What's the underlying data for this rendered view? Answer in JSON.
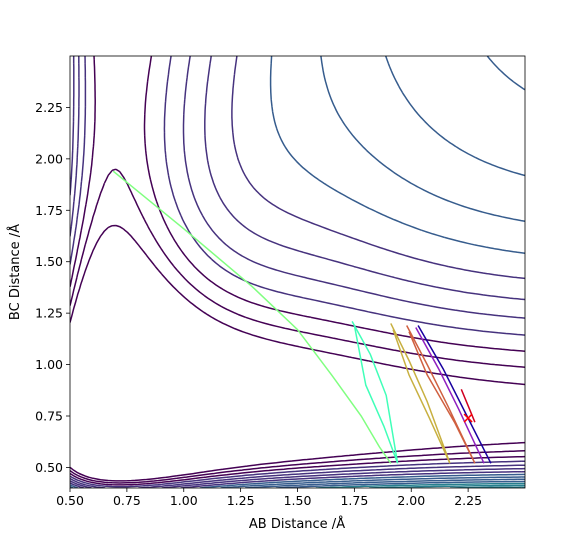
{
  "chart_data": {
    "type": "contour",
    "xlabel": "AB Distance /Å",
    "ylabel": "BC Distance /Å",
    "xlim": [
      0.5,
      2.5
    ],
    "ylim": [
      0.4,
      2.5
    ],
    "xticks": [
      "0.50",
      "0.75",
      "1.00",
      "1.25",
      "1.50",
      "1.75",
      "2.00",
      "2.25"
    ],
    "yticks": [
      "0.50",
      "0.75",
      "1.00",
      "1.25",
      "1.50",
      "1.75",
      "2.00",
      "2.25"
    ],
    "grid": false,
    "colormap": "viridis",
    "contour_colors": [
      "#440154",
      "#46327e",
      "#365c8d",
      "#277f8e",
      "#1fa187",
      "#4ac16d",
      "#a0da39",
      "#fde725"
    ],
    "trajectories": [
      {
        "color": "#80ff80",
        "points": [
          [
            0.69,
            1.94
          ],
          [
            1.0,
            1.66
          ],
          [
            1.3,
            1.38
          ],
          [
            1.5,
            1.17
          ],
          [
            1.65,
            0.95
          ],
          [
            1.78,
            0.75
          ],
          [
            1.86,
            0.6
          ],
          [
            1.91,
            0.52
          ]
        ]
      },
      {
        "color": "#40ffb8",
        "points": [
          [
            1.74,
            1.21
          ],
          [
            1.82,
            1.05
          ],
          [
            1.89,
            0.85
          ],
          [
            1.94,
            0.52
          ],
          [
            1.88,
            0.7
          ],
          [
            1.8,
            0.9
          ],
          [
            1.75,
            1.19
          ]
        ]
      },
      {
        "color": "#c8b040",
        "points": [
          [
            1.91,
            1.2
          ],
          [
            1.99,
            1.02
          ],
          [
            2.07,
            0.82
          ],
          [
            2.17,
            0.52
          ],
          [
            2.08,
            0.74
          ],
          [
            1.99,
            0.95
          ],
          [
            1.92,
            1.17
          ]
        ]
      },
      {
        "color": "#d06040",
        "points": [
          [
            1.98,
            1.19
          ],
          [
            2.07,
            1.0
          ],
          [
            2.16,
            0.8
          ],
          [
            2.28,
            0.52
          ],
          [
            2.19,
            0.72
          ],
          [
            2.07,
            0.95
          ],
          [
            1.99,
            1.16
          ]
        ]
      },
      {
        "color": "#9020c0",
        "points": [
          [
            2.02,
            1.18
          ],
          [
            2.12,
            0.98
          ],
          [
            2.21,
            0.78
          ],
          [
            2.32,
            0.52
          ]
        ]
      },
      {
        "color": "#1800a0",
        "points": [
          [
            2.03,
            1.19
          ],
          [
            2.14,
            0.98
          ],
          [
            2.24,
            0.76
          ],
          [
            2.35,
            0.52
          ]
        ]
      },
      {
        "color": "#d00020",
        "points": [
          [
            2.22,
            0.88
          ],
          [
            2.25,
            0.8
          ],
          [
            2.28,
            0.72
          ]
        ]
      }
    ],
    "marker": {
      "x": 2.25,
      "y": 0.74,
      "symbol": "x",
      "color": "#ff0000"
    }
  }
}
